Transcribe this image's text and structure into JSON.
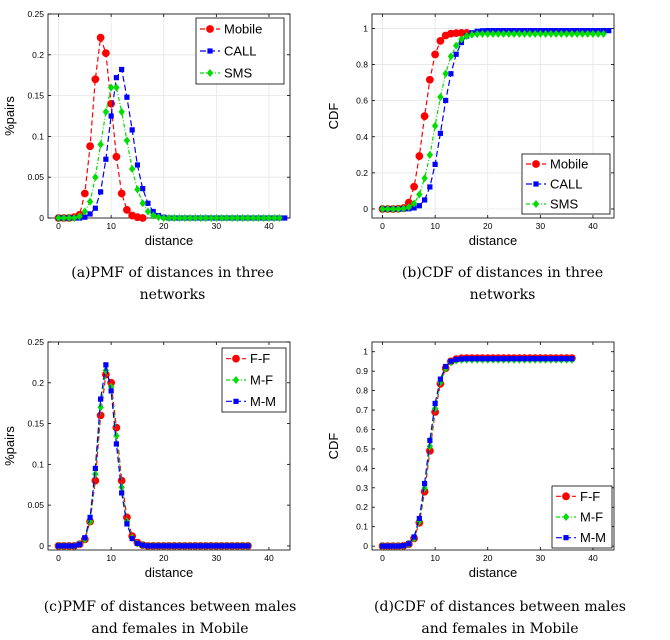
{
  "colors": {
    "mobile": "#ff0000",
    "call": "#0000ff",
    "sms": "#00dd00"
  },
  "captions": [
    {
      "line1": "(a)PMF of distances in three",
      "line2": "networks"
    },
    {
      "line1": "(b)CDF of distances in three",
      "line2": "networks"
    },
    {
      "line1": "(c)PMF of distances between males",
      "line2": "and females in Mobile"
    },
    {
      "line1": "(d)CDF of distances between males",
      "line2": "and females in Mobile"
    }
  ],
  "chart_data": [
    {
      "type": "line",
      "xlabel": "distance",
      "ylabel": "%pairs",
      "xlim": [
        -2,
        44
      ],
      "ylim": [
        0,
        0.25
      ],
      "xticks": [
        "0",
        "10",
        "20",
        "30",
        "40"
      ],
      "yticks": [
        "0",
        "0.05",
        "0.1",
        "0.15",
        "0.2",
        "0.25"
      ],
      "grid": true,
      "legend_position": "top-right",
      "series": [
        {
          "name": "Mobile",
          "color": "red",
          "marker": "circle",
          "x": [
            0,
            1,
            2,
            3,
            4,
            5,
            6,
            7,
            8,
            9,
            10,
            11,
            12,
            13,
            14,
            15,
            16
          ],
          "y": [
            0,
            0,
            0,
            0.001,
            0.004,
            0.03,
            0.088,
            0.17,
            0.221,
            0.202,
            0.14,
            0.075,
            0.03,
            0.01,
            0.003,
            0.001,
            0
          ]
        },
        {
          "name": "CALL",
          "color": "blue",
          "marker": "square",
          "x": [
            0,
            1,
            2,
            3,
            4,
            5,
            6,
            7,
            8,
            9,
            10,
            11,
            12,
            13,
            14,
            15,
            16,
            17,
            18,
            19,
            20,
            21,
            22,
            23,
            24,
            25,
            26,
            27,
            28,
            29,
            30,
            31,
            32,
            33,
            34,
            35,
            36,
            37,
            38,
            39,
            40,
            41,
            42,
            43
          ],
          "y": [
            0,
            0,
            0,
            0,
            0,
            0.001,
            0.005,
            0.012,
            0.032,
            0.072,
            0.125,
            0.172,
            0.182,
            0.148,
            0.108,
            0.065,
            0.036,
            0.018,
            0.008,
            0.003,
            0.001,
            0,
            0,
            0,
            0,
            0,
            0,
            0,
            0,
            0,
            0,
            0,
            0,
            0,
            0,
            0,
            0,
            0,
            0,
            0,
            0,
            0,
            0,
            0
          ]
        },
        {
          "name": "SMS",
          "color": "green",
          "marker": "diamond",
          "x": [
            0,
            1,
            2,
            3,
            4,
            5,
            6,
            7,
            8,
            9,
            10,
            11,
            12,
            13,
            14,
            15,
            16,
            17,
            18,
            19,
            20,
            21,
            22,
            23,
            24,
            25,
            26,
            27,
            28,
            29,
            30,
            31,
            32,
            33,
            34,
            35,
            36,
            37,
            38,
            39,
            40,
            41,
            42
          ],
          "y": [
            0,
            0,
            0,
            0,
            0.002,
            0.008,
            0.02,
            0.05,
            0.09,
            0.13,
            0.16,
            0.16,
            0.13,
            0.095,
            0.06,
            0.035,
            0.018,
            0.008,
            0.003,
            0.001,
            0,
            0,
            0,
            0,
            0,
            0,
            0,
            0,
            0,
            0,
            0,
            0,
            0,
            0,
            0,
            0,
            0,
            0,
            0,
            0,
            0,
            0,
            0
          ]
        }
      ]
    },
    {
      "type": "line",
      "xlabel": "distance",
      "ylabel": "CDF",
      "xlim": [
        -2,
        44
      ],
      "ylim": [
        -0.05,
        1.08
      ],
      "xticks": [
        "0",
        "10",
        "20",
        "30",
        "40"
      ],
      "yticks": [
        "0",
        "0.2",
        "0.4",
        "0.6",
        "0.8",
        "1"
      ],
      "grid": true,
      "legend_position": "bottom-right",
      "series": [
        {
          "name": "Mobile",
          "color": "red",
          "marker": "circle",
          "x": [
            0,
            1,
            2,
            3,
            4,
            5,
            6,
            7,
            8,
            9,
            10,
            11,
            12,
            13,
            14,
            15,
            16
          ],
          "y": [
            0,
            0,
            0,
            0.001,
            0.005,
            0.035,
            0.123,
            0.293,
            0.514,
            0.716,
            0.856,
            0.931,
            0.961,
            0.971,
            0.974,
            0.975,
            0.975
          ]
        },
        {
          "name": "CALL",
          "color": "blue",
          "marker": "square",
          "x": [
            0,
            1,
            2,
            3,
            4,
            5,
            6,
            7,
            8,
            9,
            10,
            11,
            12,
            13,
            14,
            15,
            16,
            17,
            18,
            19,
            20,
            21,
            22,
            23,
            24,
            25,
            26,
            27,
            28,
            29,
            30,
            31,
            32,
            33,
            34,
            35,
            36,
            37,
            38,
            39,
            40,
            41,
            42,
            43
          ],
          "y": [
            0,
            0,
            0,
            0,
            0,
            0.001,
            0.006,
            0.018,
            0.05,
            0.122,
            0.247,
            0.419,
            0.601,
            0.749,
            0.857,
            0.922,
            0.958,
            0.976,
            0.984,
            0.987,
            0.988,
            0.988,
            0.988,
            0.988,
            0.988,
            0.988,
            0.988,
            0.988,
            0.988,
            0.988,
            0.988,
            0.988,
            0.988,
            0.988,
            0.988,
            0.988,
            0.988,
            0.988,
            0.988,
            0.988,
            0.988,
            0.988,
            0.988,
            0.988
          ]
        },
        {
          "name": "SMS",
          "color": "green",
          "marker": "diamond",
          "x": [
            0,
            1,
            2,
            3,
            4,
            5,
            6,
            7,
            8,
            9,
            10,
            11,
            12,
            13,
            14,
            15,
            16,
            17,
            18,
            19,
            20,
            21,
            22,
            23,
            24,
            25,
            26,
            27,
            28,
            29,
            30,
            31,
            32,
            33,
            34,
            35,
            36,
            37,
            38,
            39,
            40,
            41,
            42
          ],
          "y": [
            0,
            0,
            0,
            0,
            0.002,
            0.01,
            0.03,
            0.08,
            0.17,
            0.3,
            0.46,
            0.62,
            0.75,
            0.845,
            0.905,
            0.94,
            0.958,
            0.966,
            0.969,
            0.97,
            0.97,
            0.97,
            0.97,
            0.97,
            0.97,
            0.97,
            0.97,
            0.97,
            0.97,
            0.97,
            0.97,
            0.97,
            0.97,
            0.97,
            0.97,
            0.97,
            0.97,
            0.97,
            0.97,
            0.97,
            0.97,
            0.97,
            0.97
          ]
        }
      ]
    },
    {
      "type": "line",
      "xlabel": "distance",
      "ylabel": "%pairs",
      "xlim": [
        -2,
        44
      ],
      "ylim": [
        -0.005,
        0.25
      ],
      "xticks": [
        "0",
        "10",
        "20",
        "30",
        "40"
      ],
      "yticks": [
        "0",
        "0.05",
        "0.1",
        "0.15",
        "0.2",
        "0.25"
      ],
      "grid": false,
      "legend_position": "top-right",
      "series": [
        {
          "name": "F-F",
          "color": "red",
          "marker": "circle",
          "x": [
            0,
            1,
            2,
            3,
            4,
            5,
            6,
            7,
            8,
            9,
            10,
            11,
            12,
            13,
            14,
            15,
            16,
            17,
            18,
            19,
            20,
            21,
            22,
            23,
            24,
            25,
            26,
            27,
            28,
            29,
            30,
            31,
            32,
            33,
            34,
            35,
            36
          ],
          "y": [
            0,
            0,
            0,
            0,
            0.002,
            0.008,
            0.03,
            0.08,
            0.16,
            0.21,
            0.2,
            0.145,
            0.08,
            0.035,
            0.012,
            0.004,
            0.001,
            0,
            0,
            0,
            0,
            0,
            0,
            0,
            0,
            0,
            0,
            0,
            0,
            0,
            0,
            0,
            0,
            0,
            0,
            0,
            0
          ]
        },
        {
          "name": "M-F",
          "color": "green",
          "marker": "diamond",
          "x": [
            0,
            1,
            2,
            3,
            4,
            5,
            6,
            7,
            8,
            9,
            10,
            11,
            12,
            13,
            14,
            15,
            16,
            17,
            18,
            19,
            20,
            21,
            22,
            23,
            24,
            25,
            26,
            27,
            28,
            29,
            30,
            31,
            32,
            33,
            34,
            35,
            36
          ],
          "y": [
            0,
            0,
            0,
            0,
            0.002,
            0.008,
            0.03,
            0.088,
            0.17,
            0.215,
            0.195,
            0.135,
            0.072,
            0.03,
            0.01,
            0.003,
            0.001,
            0,
            0,
            0,
            0,
            0,
            0,
            0,
            0,
            0,
            0,
            0,
            0,
            0,
            0,
            0,
            0,
            0,
            0,
            0,
            0
          ]
        },
        {
          "name": "M-M",
          "color": "blue",
          "marker": "square",
          "x": [
            0,
            1,
            2,
            3,
            4,
            5,
            6,
            7,
            8,
            9,
            10,
            11,
            12,
            13,
            14,
            15,
            16,
            17,
            18,
            19,
            20,
            21,
            22,
            23,
            24,
            25,
            26,
            27,
            28,
            29,
            30,
            31,
            32,
            33,
            34,
            35,
            36
          ],
          "y": [
            0,
            0,
            0,
            0,
            0.002,
            0.01,
            0.035,
            0.095,
            0.18,
            0.222,
            0.19,
            0.125,
            0.065,
            0.027,
            0.009,
            0.003,
            0.001,
            0,
            0,
            0,
            0,
            0,
            0,
            0,
            0,
            0,
            0,
            0,
            0,
            0,
            0,
            0,
            0,
            0,
            0,
            0,
            0
          ]
        }
      ]
    },
    {
      "type": "line",
      "xlabel": "distance",
      "ylabel": "CDF",
      "xlim": [
        -2,
        44
      ],
      "ylim": [
        -0.02,
        1.05
      ],
      "xticks": [
        "0",
        "10",
        "20",
        "30",
        "40"
      ],
      "yticks": [
        "0",
        "0.1",
        "0.2",
        "0.3",
        "0.4",
        "0.5",
        "0.6",
        "0.7",
        "0.8",
        "0.9",
        "1"
      ],
      "grid": false,
      "legend_position": "bottom-right",
      "series": [
        {
          "name": "F-F",
          "color": "red",
          "marker": "circle",
          "x": [
            0,
            1,
            2,
            3,
            4,
            5,
            6,
            7,
            8,
            9,
            10,
            11,
            12,
            13,
            14,
            15,
            16,
            17,
            18,
            19,
            20,
            21,
            22,
            23,
            24,
            25,
            26,
            27,
            28,
            29,
            30,
            31,
            32,
            33,
            34,
            35,
            36
          ],
          "y": [
            0,
            0,
            0,
            0,
            0.002,
            0.01,
            0.04,
            0.12,
            0.28,
            0.49,
            0.69,
            0.835,
            0.915,
            0.95,
            0.962,
            0.966,
            0.967,
            0.967,
            0.967,
            0.967,
            0.967,
            0.967,
            0.967,
            0.967,
            0.967,
            0.967,
            0.967,
            0.967,
            0.967,
            0.967,
            0.967,
            0.967,
            0.967,
            0.967,
            0.967,
            0.967,
            0.967
          ]
        },
        {
          "name": "M-F",
          "color": "green",
          "marker": "diamond",
          "x": [
            0,
            1,
            2,
            3,
            4,
            5,
            6,
            7,
            8,
            9,
            10,
            11,
            12,
            13,
            14,
            15,
            16,
            17,
            18,
            19,
            20,
            21,
            22,
            23,
            24,
            25,
            26,
            27,
            28,
            29,
            30,
            31,
            32,
            33,
            34,
            35,
            36
          ],
          "y": [
            0,
            0,
            0,
            0,
            0.002,
            0.01,
            0.04,
            0.128,
            0.298,
            0.513,
            0.708,
            0.843,
            0.915,
            0.945,
            0.955,
            0.958,
            0.959,
            0.959,
            0.959,
            0.959,
            0.959,
            0.959,
            0.959,
            0.959,
            0.959,
            0.959,
            0.959,
            0.959,
            0.959,
            0.959,
            0.959,
            0.959,
            0.959,
            0.959,
            0.959,
            0.959,
            0.959
          ]
        },
        {
          "name": "M-M",
          "color": "blue",
          "marker": "square",
          "x": [
            0,
            1,
            2,
            3,
            4,
            5,
            6,
            7,
            8,
            9,
            10,
            11,
            12,
            13,
            14,
            15,
            16,
            17,
            18,
            19,
            20,
            21,
            22,
            23,
            24,
            25,
            26,
            27,
            28,
            29,
            30,
            31,
            32,
            33,
            34,
            35,
            36
          ],
          "y": [
            0,
            0,
            0,
            0,
            0.002,
            0.012,
            0.047,
            0.142,
            0.322,
            0.544,
            0.734,
            0.859,
            0.924,
            0.951,
            0.96,
            0.963,
            0.964,
            0.964,
            0.964,
            0.964,
            0.964,
            0.964,
            0.964,
            0.964,
            0.964,
            0.964,
            0.964,
            0.964,
            0.964,
            0.964,
            0.964,
            0.964,
            0.964,
            0.964,
            0.964,
            0.964,
            0.964
          ]
        }
      ]
    }
  ]
}
